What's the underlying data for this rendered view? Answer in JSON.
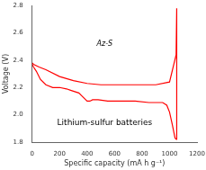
{
  "chart_data": {
    "type": "line",
    "xlabel": "Specific capacity (mA h g⁻¹)",
    "ylabel": "Voltage (V)",
    "xlim": [
      0,
      1200
    ],
    "ylim": [
      1.8,
      2.8
    ],
    "xticks": [
      0,
      200,
      400,
      600,
      800,
      1000,
      1200
    ],
    "yticks": [
      1.8,
      {
        "value": 2.0,
        "label": "2.0"
      },
      2.2,
      2.4,
      2.6,
      2.8
    ],
    "grid": false,
    "annotations": [
      "Lithium-sulfur batteries",
      "Az-S"
    ],
    "series": [
      {
        "color": "#ff0000",
        "x": [
          0,
          10,
          30,
          60,
          100,
          150,
          200,
          250,
          280,
          310,
          340,
          360,
          380,
          400,
          420,
          440,
          480,
          550,
          650,
          750,
          850,
          950,
          980,
          1000,
          1020,
          1040,
          1050
        ],
        "values": [
          2.37,
          2.35,
          2.32,
          2.26,
          2.22,
          2.2,
          2.2,
          2.19,
          2.18,
          2.17,
          2.16,
          2.14,
          2.12,
          2.1,
          2.1,
          2.11,
          2.11,
          2.1,
          2.1,
          2.1,
          2.09,
          2.09,
          2.07,
          2.02,
          1.93,
          1.83,
          1.82
        ]
      },
      {
        "color": "#ff0000",
        "x": [
          1050,
          1052,
          1053,
          1052,
          1048,
          1000,
          900,
          800,
          700,
          600,
          500,
          400,
          300,
          200,
          100,
          50,
          10,
          0
        ],
        "values": [
          1.82,
          2.1,
          2.42,
          2.78,
          2.44,
          2.24,
          2.22,
          2.22,
          2.22,
          2.22,
          2.22,
          2.23,
          2.25,
          2.28,
          2.33,
          2.35,
          2.37,
          2.38
        ]
      }
    ]
  }
}
